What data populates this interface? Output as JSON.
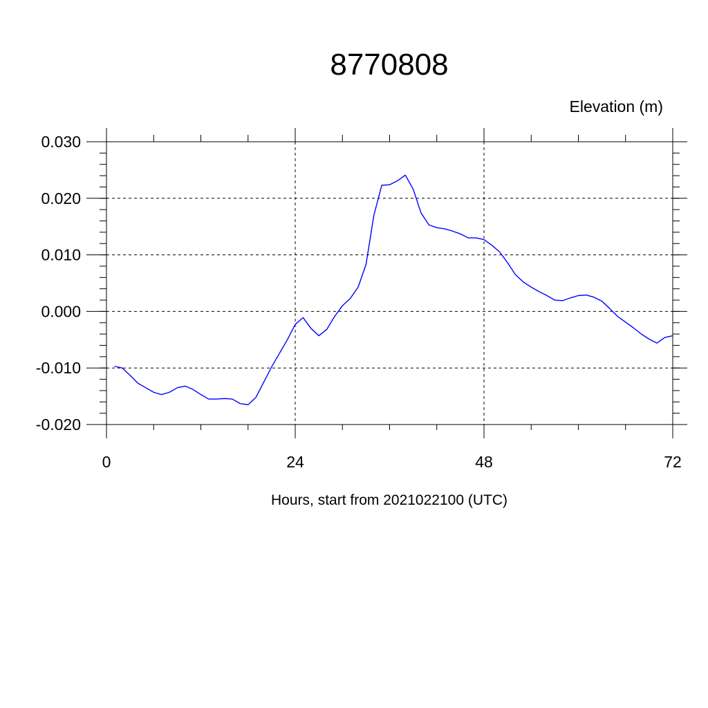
{
  "chart_data": {
    "type": "line",
    "title": "8770808",
    "ylabel": "Elevation (m)",
    "xlabel": "Hours, start from 2021022100 (UTC)",
    "xlim": [
      0,
      72
    ],
    "ylim": [
      -0.02,
      0.03
    ],
    "xticks": [
      0,
      24,
      48,
      72
    ],
    "xtick_labels": [
      "0",
      "24",
      "48",
      "72"
    ],
    "yticks": [
      -0.02,
      -0.01,
      0.0,
      0.01,
      0.02,
      0.03
    ],
    "ytick_labels": [
      "-0.020",
      "-0.010",
      "0.000",
      "0.010",
      "0.020",
      "0.030"
    ],
    "grid": true,
    "series": [
      {
        "color": "#0000ff",
        "x": [
          1,
          2,
          3,
          4,
          5,
          6,
          7,
          8,
          9,
          10,
          11,
          12,
          13,
          14,
          15,
          16,
          17,
          18,
          19,
          20,
          21,
          22,
          23,
          24,
          25,
          26,
          27,
          28,
          29,
          30,
          31,
          32,
          33,
          34,
          35,
          36,
          37,
          38,
          39,
          40,
          41,
          42,
          43,
          44,
          45,
          46,
          47,
          48,
          49,
          50,
          51,
          52,
          53,
          54,
          55,
          56,
          57,
          58,
          59,
          60,
          61,
          62,
          63,
          64,
          65,
          66,
          67,
          68,
          69,
          70,
          71,
          72
        ],
        "y": [
          -0.0097,
          -0.01,
          -0.0113,
          -0.0127,
          -0.0135,
          -0.0143,
          -0.0147,
          -0.0143,
          -0.0135,
          -0.0132,
          -0.0138,
          -0.0147,
          -0.0155,
          -0.0155,
          -0.0154,
          -0.0155,
          -0.0163,
          -0.0165,
          -0.0152,
          -0.0125,
          -0.0098,
          -0.0074,
          -0.005,
          -0.0023,
          -0.0011,
          -0.003,
          -0.0043,
          -0.0032,
          -0.0009,
          0.001,
          0.0023,
          0.0043,
          0.0083,
          0.017,
          0.0223,
          0.0224,
          0.0231,
          0.0241,
          0.0216,
          0.0174,
          0.0153,
          0.0148,
          0.0146,
          0.0142,
          0.0137,
          0.013,
          0.013,
          0.0127,
          0.0117,
          0.0105,
          0.0086,
          0.0065,
          0.0052,
          0.0043,
          0.0035,
          0.0028,
          0.002,
          0.0019,
          0.0024,
          0.0028,
          0.0029,
          0.0025,
          0.0018,
          0.0005,
          -0.0009,
          -0.0019,
          -0.0029,
          -0.004,
          -0.0049,
          -0.0056,
          -0.0046,
          -0.0043
        ]
      }
    ]
  }
}
